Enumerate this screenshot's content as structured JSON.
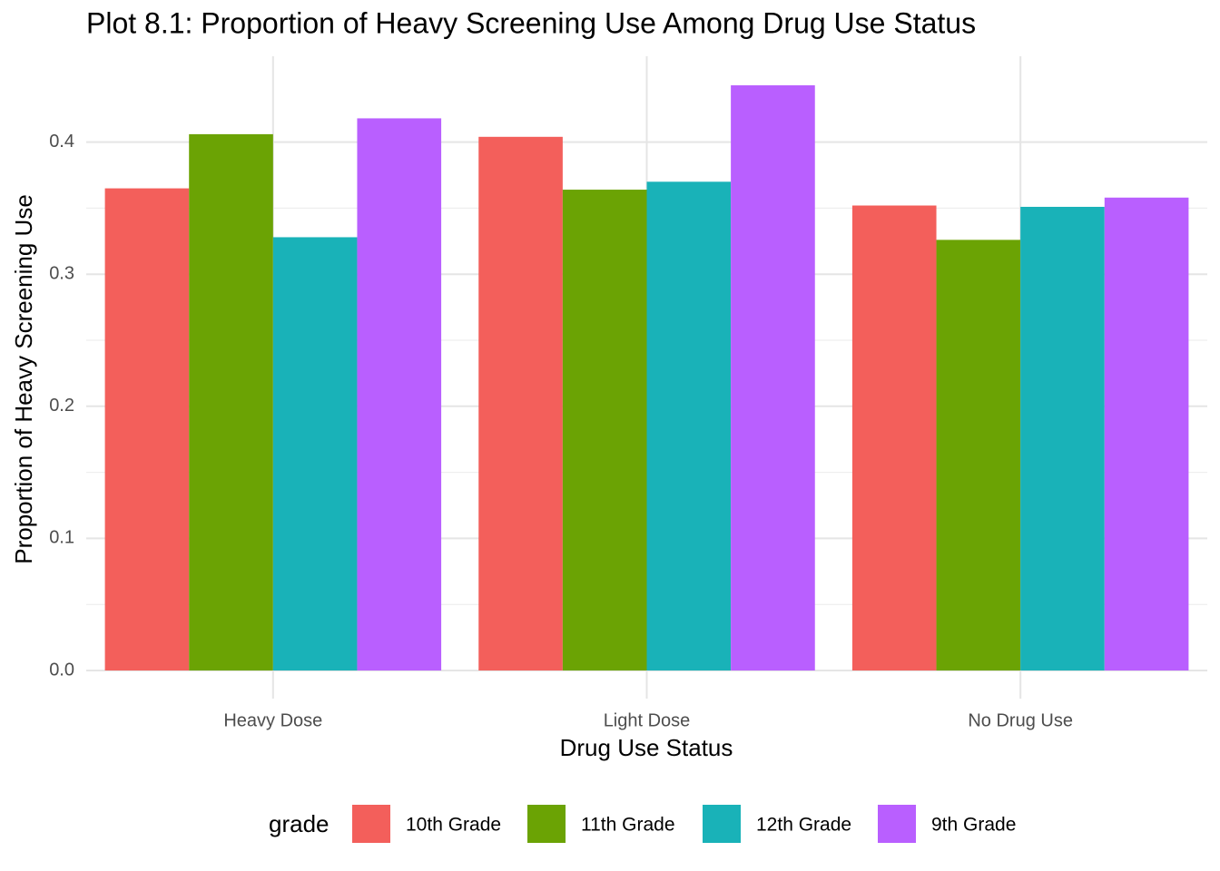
{
  "chart_data": {
    "type": "bar",
    "title": "Plot 8.1: Proportion of Heavy Screening Use Among Drug Use Status",
    "x_label": "Drug Use Status",
    "y_label": "Proportion of Heavy Screening Use",
    "categories": [
      "Heavy Dose",
      "Light Dose",
      "No Drug Use"
    ],
    "legend_title": "grade",
    "legend_position": "bottom",
    "series": [
      {
        "name": "10th Grade",
        "color": "#f35f5b",
        "values": [
          0.365,
          0.404,
          0.352
        ]
      },
      {
        "name": "11th Grade",
        "color": "#6ba304",
        "values": [
          0.406,
          0.364,
          0.326
        ]
      },
      {
        "name": "12th Grade",
        "color": "#19b2b8",
        "values": [
          0.328,
          0.37,
          0.351
        ]
      },
      {
        "name": "9th Grade",
        "color": "#b95fff",
        "values": [
          0.418,
          0.443,
          0.358
        ]
      }
    ],
    "ylim": [
      -0.0213,
      0.465
    ],
    "yticks": [
      {
        "value": 0,
        "label": "0.0"
      },
      0.1,
      0.2,
      0.3,
      0.4
    ],
    "grid": true
  }
}
